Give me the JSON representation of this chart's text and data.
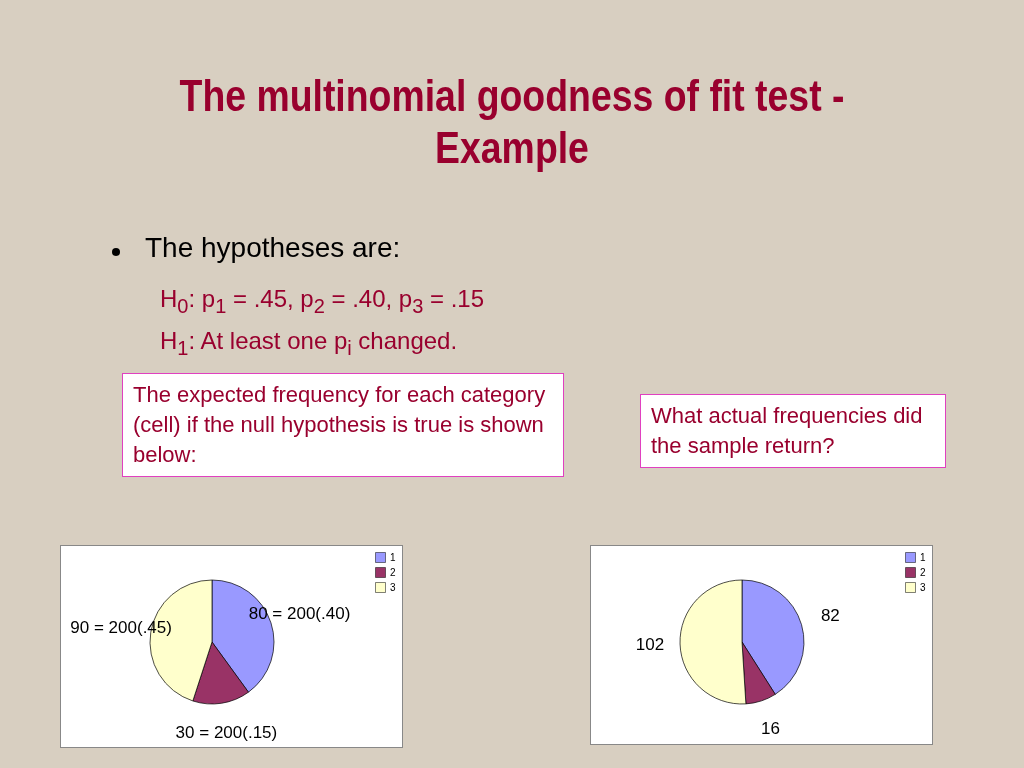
{
  "chart_data": [
    {
      "type": "pie",
      "title": "The multinomial goodness of fit test - Example",
      "annotations": [
        "The hypotheses are:",
        "H$_{0}$: p$_{1}$ = .45, p$_{2}$ = .40, p$_{3}$ = .15",
        "H$_{1}$: At least one p$_{i}$ changed.",
        "The expected  frequency for each category (cell) if the null hypothesis is true is shown below:"
      ],
      "categories": [
        "1",
        "2",
        "3"
      ],
      "values": [
        80,
        30,
        90
      ],
      "value_labels": [
        "80 = 200(.40)",
        "30 = 200(.15)",
        "90 = 200(.45)"
      ],
      "colors": [
        "#9999ff",
        "#993366",
        "#ffffcc"
      ],
      "legend": "right"
    },
    {
      "type": "pie",
      "annotations": [
        "What actual frequencies did the sample return?"
      ],
      "categories": [
        "1",
        "2",
        "3"
      ],
      "values": [
        82,
        16,
        102
      ],
      "data_labels": true,
      "colors": [
        "#9999ff",
        "#993366",
        "#ffffcc"
      ],
      "legend": "right"
    }
  ]
}
